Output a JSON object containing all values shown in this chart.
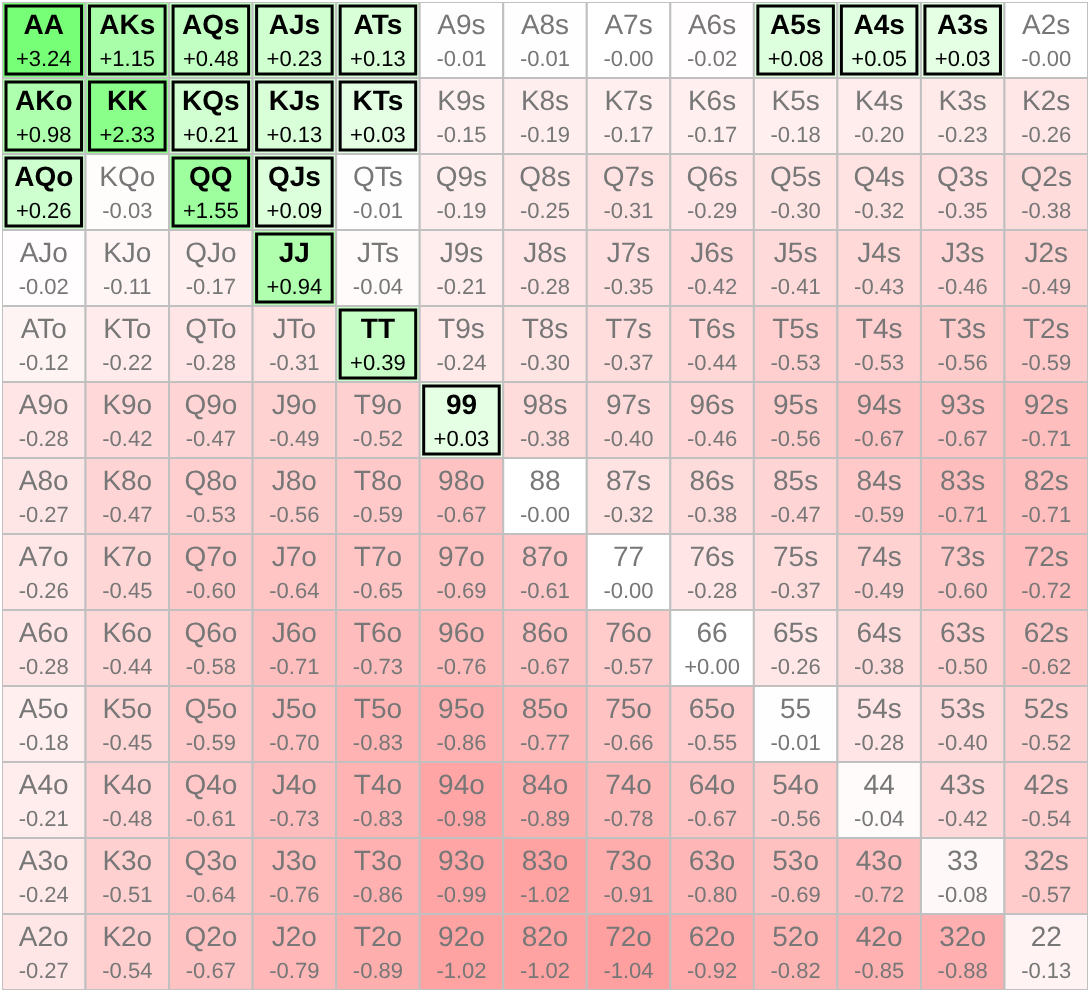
{
  "chart_data": {
    "type": "heatmap",
    "categories": [
      null,
      null,
      null,
      null,
      null,
      null,
      null,
      null,
      null,
      null,
      null,
      null,
      null
    ],
    "y_categories": [
      null,
      null,
      null,
      null,
      null,
      null,
      null,
      null,
      null,
      null,
      null,
      null,
      null
    ],
    "cells": [
      [
        3.24,
        1.15,
        0.48,
        0.23,
        0.13,
        -0.01,
        -0.01,
        -0.0,
        -0.02,
        0.08,
        0.05,
        0.03,
        -0.0
      ],
      [
        0.98,
        2.33,
        0.21,
        0.13,
        0.03,
        -0.15,
        -0.19,
        -0.17,
        -0.17,
        -0.18,
        -0.2,
        -0.23,
        -0.26
      ],
      [
        0.26,
        -0.03,
        1.55,
        0.09,
        -0.01,
        -0.19,
        -0.25,
        -0.31,
        -0.29,
        -0.3,
        -0.32,
        -0.35,
        -0.38
      ],
      [
        -0.02,
        -0.11,
        -0.17,
        0.94,
        -0.04,
        -0.21,
        -0.28,
        -0.35,
        -0.42,
        -0.41,
        -0.43,
        -0.46,
        -0.49
      ],
      [
        -0.12,
        -0.22,
        -0.28,
        -0.31,
        0.39,
        -0.24,
        -0.3,
        -0.37,
        -0.44,
        -0.53,
        -0.53,
        -0.56,
        -0.59
      ],
      [
        -0.28,
        -0.42,
        -0.47,
        -0.49,
        -0.52,
        0.03,
        -0.38,
        -0.4,
        -0.46,
        -0.56,
        -0.67,
        -0.67,
        -0.71
      ],
      [
        -0.27,
        -0.47,
        -0.53,
        -0.56,
        -0.59,
        -0.67,
        -0.0,
        -0.32,
        -0.38,
        -0.47,
        -0.59,
        -0.71,
        -0.71
      ],
      [
        -0.26,
        -0.45,
        -0.6,
        -0.64,
        -0.65,
        -0.69,
        -0.61,
        -0.0,
        -0.28,
        -0.37,
        -0.49,
        -0.6,
        -0.72
      ],
      [
        -0.28,
        -0.44,
        -0.58,
        -0.71,
        -0.73,
        -0.76,
        -0.67,
        -0.57,
        0.0,
        -0.26,
        -0.38,
        -0.5,
        -0.62
      ],
      [
        -0.18,
        -0.45,
        -0.59,
        -0.7,
        -0.83,
        -0.86,
        -0.77,
        -0.66,
        -0.55,
        -0.01,
        -0.28,
        -0.4,
        -0.52
      ],
      [
        -0.21,
        -0.48,
        -0.61,
        -0.73,
        -0.83,
        -0.98,
        -0.89,
        -0.78,
        -0.67,
        -0.56,
        -0.04,
        -0.42,
        -0.54
      ],
      [
        -0.24,
        -0.51,
        -0.64,
        -0.76,
        -0.86,
        -0.99,
        -1.02,
        -0.91,
        -0.8,
        -0.69,
        -0.72,
        -0.08,
        -0.57
      ],
      [
        -0.27,
        -0.54,
        -0.67,
        -0.79,
        -0.89,
        -1.02,
        -1.02,
        -1.04,
        -0.92,
        -0.82,
        -0.85,
        -0.88,
        -0.13
      ]
    ],
    "cell_labels": [
      [
        "+3.24",
        "+1.15",
        "+0.48",
        "+0.23",
        "+0.13",
        "-0.01",
        "-0.01",
        "-0.00",
        "-0.02",
        "+0.08",
        "+0.05",
        "+0.03",
        "-0.00"
      ],
      [
        "+0.98",
        "+2.33",
        "+0.21",
        "+0.13",
        "+0.03",
        "-0.15",
        "-0.19",
        "-0.17",
        "-0.17",
        "-0.18",
        "-0.20",
        "-0.23",
        "-0.26"
      ],
      [
        "+0.26",
        "-0.03",
        "+1.55",
        "+0.09",
        "-0.01",
        "-0.19",
        "-0.25",
        "-0.31",
        "-0.29",
        "-0.30",
        "-0.32",
        "-0.35",
        "-0.38"
      ],
      [
        "-0.02",
        "-0.11",
        "-0.17",
        "+0.94",
        "-0.04",
        "-0.21",
        "-0.28",
        "-0.35",
        "-0.42",
        "-0.41",
        "-0.43",
        "-0.46",
        "-0.49"
      ],
      [
        "-0.12",
        "-0.22",
        "-0.28",
        "-0.31",
        "+0.39",
        "-0.24",
        "-0.30",
        "-0.37",
        "-0.44",
        "-0.53",
        "-0.53",
        "-0.56",
        "-0.59"
      ],
      [
        "-0.28",
        "-0.42",
        "-0.47",
        "-0.49",
        "-0.52",
        "+0.03",
        "-0.38",
        "-0.40",
        "-0.46",
        "-0.56",
        "-0.67",
        "-0.67",
        "-0.71"
      ],
      [
        "-0.27",
        "-0.47",
        "-0.53",
        "-0.56",
        "-0.59",
        "-0.67",
        "-0.00",
        "-0.32",
        "-0.38",
        "-0.47",
        "-0.59",
        "-0.71",
        "-0.71"
      ],
      [
        "-0.26",
        "-0.45",
        "-0.60",
        "-0.64",
        "-0.65",
        "-0.69",
        "-0.61",
        "-0.00",
        "-0.28",
        "-0.37",
        "-0.49",
        "-0.60",
        "-0.72"
      ],
      [
        "-0.28",
        "-0.44",
        "-0.58",
        "-0.71",
        "-0.73",
        "-0.76",
        "-0.67",
        "-0.57",
        "+0.00",
        "-0.26",
        "-0.38",
        "-0.50",
        "-0.62"
      ],
      [
        "-0.18",
        "-0.45",
        "-0.59",
        "-0.70",
        "-0.83",
        "-0.86",
        "-0.77",
        "-0.66",
        "-0.55",
        "-0.01",
        "-0.28",
        "-0.40",
        "-0.52"
      ],
      [
        "-0.21",
        "-0.48",
        "-0.61",
        "-0.73",
        "-0.83",
        "-0.98",
        "-0.89",
        "-0.78",
        "-0.67",
        "-0.56",
        "-0.04",
        "-0.42",
        "-0.54"
      ],
      [
        "-0.24",
        "-0.51",
        "-0.64",
        "-0.76",
        "-0.86",
        "-0.99",
        "-1.02",
        "-0.91",
        "-0.80",
        "-0.69",
        "-0.72",
        "-0.08",
        "-0.57"
      ],
      [
        "-0.27",
        "-0.54",
        "-0.67",
        "-0.79",
        "-0.89",
        "-1.02",
        "-1.02",
        "-1.04",
        "-0.92",
        "-0.82",
        "-0.85",
        "-0.88",
        "-0.13"
      ]
    ],
    "annotations": [
      "AA",
      "AKs",
      "AQs",
      "AJs",
      "ATs",
      "A9s",
      "A8s",
      "A7s",
      "A6s",
      "A5s",
      "A4s",
      "A3s",
      "A2s",
      "AKo",
      "KK",
      "KQs",
      "KJs",
      "KTs",
      "K9s",
      "K8s",
      "K7s",
      "K6s",
      "K5s",
      "K4s",
      "K3s",
      "K2s",
      "AQo",
      "KQo",
      "QQ",
      "QJs",
      "QTs",
      "Q9s",
      "Q8s",
      "Q7s",
      "Q6s",
      "Q5s",
      "Q4s",
      "Q3s",
      "Q2s",
      "AJo",
      "KJo",
      "QJo",
      "JJ",
      "JTs",
      "J9s",
      "J8s",
      "J7s",
      "J6s",
      "J5s",
      "J4s",
      "J3s",
      "J2s",
      "ATo",
      "KTo",
      "QTo",
      "JTo",
      "TT",
      "T9s",
      "T8s",
      "T7s",
      "T6s",
      "T5s",
      "T4s",
      "T3s",
      "T2s",
      "A9o",
      "K9o",
      "Q9o",
      "J9o",
      "T9o",
      "99",
      "98s",
      "97s",
      "96s",
      "95s",
      "94s",
      "93s",
      "92s",
      "A8o",
      "K8o",
      "Q8o",
      "J8o",
      "T8o",
      "98o",
      "88",
      "87s",
      "86s",
      "85s",
      "84s",
      "83s",
      "82s",
      "A7o",
      "K7o",
      "Q7o",
      "J7o",
      "T7o",
      "97o",
      "87o",
      "77",
      "76s",
      "75s",
      "74s",
      "73s",
      "72s",
      "A6o",
      "K6o",
      "Q6o",
      "J6o",
      "T6o",
      "96o",
      "86o",
      "76o",
      "66",
      "65s",
      "64s",
      "63s",
      "62s",
      "A5o",
      "K5o",
      "Q5o",
      "J5o",
      "T5o",
      "95o",
      "85o",
      "75o",
      "65o",
      "55",
      "54s",
      "53s",
      "52s",
      "A4o",
      "K4o",
      "Q4o",
      "J4o",
      "T4o",
      "94o",
      "84o",
      "74o",
      "64o",
      "54o",
      "44",
      "43s",
      "42s",
      "A3o",
      "K3o",
      "Q3o",
      "J3o",
      "T3o",
      "93o",
      "83o",
      "73o",
      "63o",
      "53o",
      "43o",
      "33",
      "32s",
      "A2o",
      "K2o",
      "Q2o",
      "J2o",
      "T2o",
      "92o",
      "82o",
      "72o",
      "62o",
      "52o",
      "42o",
      "32o",
      "22"
    ]
  }
}
